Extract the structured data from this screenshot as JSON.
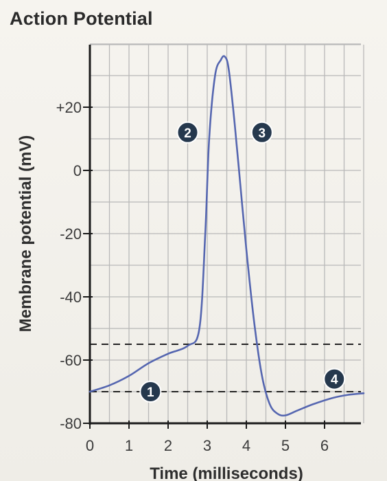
{
  "chart_data": {
    "type": "line",
    "title": "Action Potential",
    "xlabel": "Time (milliseconds)",
    "ylabel": "Membrane potential (mV)",
    "xlim": [
      0,
      7
    ],
    "ylim": [
      -80,
      40
    ],
    "grid": true,
    "x_ticks": [
      {
        "value": 0,
        "label": "0"
      },
      {
        "value": 1,
        "label": "1"
      },
      {
        "value": 2,
        "label": "2"
      },
      {
        "value": 3,
        "label": "3"
      },
      {
        "value": 4,
        "label": "4"
      },
      {
        "value": 5,
        "label": "5"
      },
      {
        "value": 6,
        "label": "6"
      }
    ],
    "y_ticks": [
      {
        "value": 20,
        "label": "+20"
      },
      {
        "value": 0,
        "label": "0"
      },
      {
        "value": -20,
        "label": "-20"
      },
      {
        "value": -40,
        "label": "-40"
      },
      {
        "value": -60,
        "label": "-60"
      },
      {
        "value": -80,
        "label": "-80"
      }
    ],
    "series": [
      {
        "color": "#5566b0",
        "x": [
          0,
          0.5,
          1.0,
          1.5,
          2.0,
          2.5,
          2.8,
          2.95,
          3.05,
          3.2,
          3.35,
          3.45,
          3.55,
          3.7,
          3.85,
          4.0,
          4.2,
          4.4,
          4.6,
          4.8,
          5.0,
          5.3,
          5.7,
          6.2,
          6.6,
          7.0
        ],
        "y": [
          -70,
          -68,
          -65,
          -61,
          -58,
          -55.5,
          -50,
          -20,
          10,
          30,
          35,
          36,
          32,
          15,
          -5,
          -25,
          -48,
          -65,
          -74,
          -77,
          -77.5,
          -76,
          -74,
          -72,
          -71,
          -70.5
        ]
      }
    ],
    "reference_lines": [
      {
        "y": -55,
        "style": "dashed"
      },
      {
        "y": -70,
        "style": "dashed"
      }
    ],
    "annotations": [
      {
        "label": "2",
        "x": 2.5,
        "y": 12
      },
      {
        "label": "3",
        "x": 4.4,
        "y": 12
      },
      {
        "label": "1",
        "x": 1.55,
        "y": -70
      },
      {
        "label": "4",
        "x": 6.25,
        "y": -66
      }
    ]
  },
  "colors": {
    "curve": "#5566b0",
    "marker_fill": "#25384d",
    "grid": "#b8b8b8",
    "axis": "#1a1a1a"
  }
}
